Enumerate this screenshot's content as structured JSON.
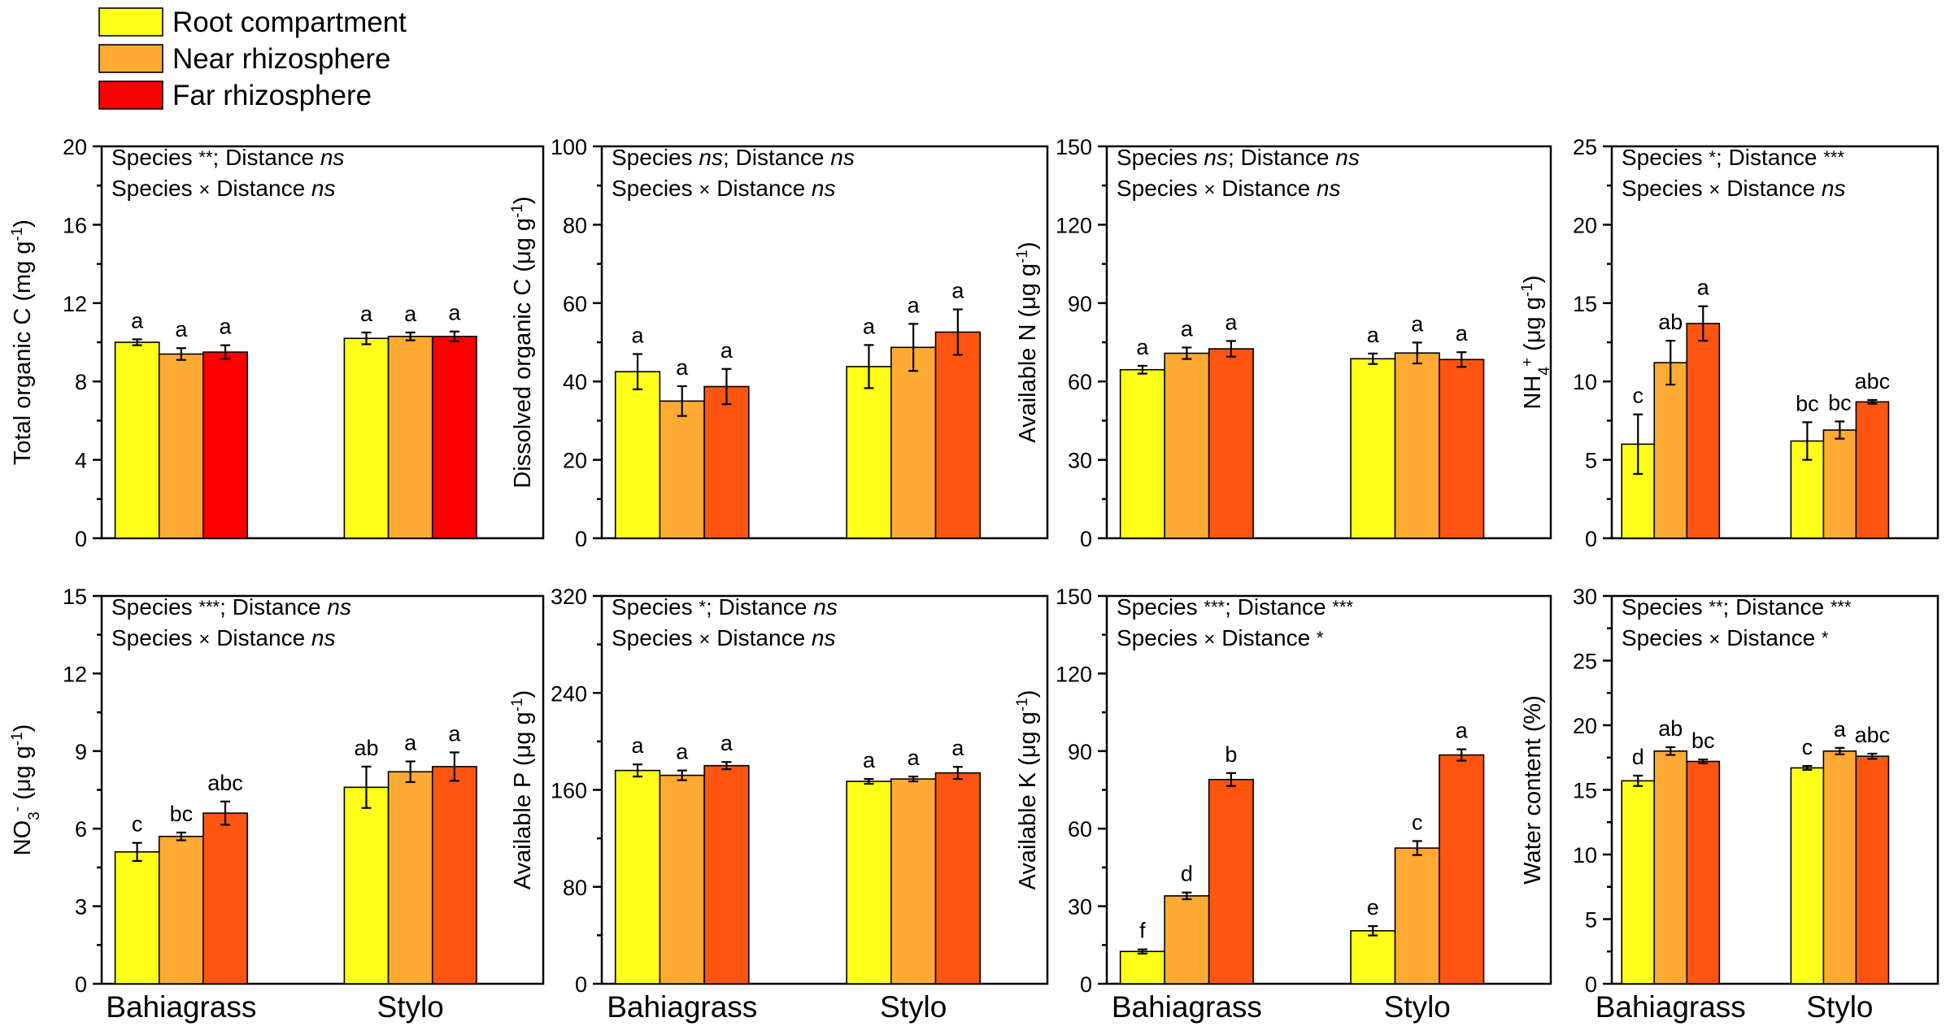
{
  "colors": {
    "root": "#FFFF1A",
    "near": "#FFAA33",
    "far_red": "#FF0000",
    "far_orange": "#FF5511"
  },
  "legend": [
    {
      "label": "Root compartment",
      "color": "#FFFF1A"
    },
    {
      "label": "Near rhizosphere",
      "color": "#FFAA33"
    },
    {
      "label": "Far rhizosphere",
      "color": "#FF0000"
    }
  ],
  "chart_data": [
    {
      "type": "bar",
      "panel": "total-organic-c",
      "ylabel_main": "Total organic C (mg g",
      "ylabel_sup": "-1",
      "ylabel_tail": ")",
      "ylim": [
        0,
        20
      ],
      "yticks": [
        0,
        4,
        8,
        12,
        16,
        20
      ],
      "categories": [
        "Bahiagrass",
        "Stylo"
      ],
      "far_color": "far_red",
      "series": [
        {
          "name": "Root compartment",
          "values": [
            10.0,
            10.2
          ],
          "errors": [
            0.15,
            0.3
          ],
          "letters": [
            "a",
            "a"
          ]
        },
        {
          "name": "Near rhizosphere",
          "values": [
            9.4,
            10.3
          ],
          "errors": [
            0.3,
            0.2
          ],
          "letters": [
            "a",
            "a"
          ]
        },
        {
          "name": "Far rhizosphere",
          "values": [
            9.5,
            10.3
          ],
          "errors": [
            0.35,
            0.25
          ],
          "letters": [
            "a",
            "a"
          ]
        }
      ],
      "annotation_1": [
        {
          "t": "Species "
        },
        {
          "t": "**",
          "k": "star"
        },
        {
          "t": "; Distance "
        },
        {
          "t": "ns",
          "k": "italic"
        }
      ],
      "annotation_2": [
        {
          "t": "Species "
        },
        {
          "t": "×",
          "k": "times"
        },
        {
          "t": " Distance "
        },
        {
          "t": "ns",
          "k": "italic"
        }
      ]
    },
    {
      "type": "bar",
      "panel": "dissolved-organic-c",
      "ylabel_main": "Dissolved organic C (μg g",
      "ylabel_sup": "-1",
      "ylabel_tail": ")",
      "ylim": [
        0,
        100
      ],
      "yticks": [
        0,
        20,
        40,
        60,
        80,
        100
      ],
      "categories": [
        "Bahiagrass",
        "Stylo"
      ],
      "far_color": "far_orange",
      "series": [
        {
          "name": "Root compartment",
          "values": [
            42.5,
            43.8
          ],
          "errors": [
            4.5,
            5.5
          ],
          "letters": [
            "a",
            "a"
          ]
        },
        {
          "name": "Near rhizosphere",
          "values": [
            35.0,
            48.7
          ],
          "errors": [
            3.8,
            6.0
          ],
          "letters": [
            "a",
            "a"
          ]
        },
        {
          "name": "Far rhizosphere",
          "values": [
            38.7,
            52.6
          ],
          "errors": [
            4.5,
            5.8
          ],
          "letters": [
            "a",
            "a"
          ]
        }
      ],
      "annotation_1": [
        {
          "t": "Species "
        },
        {
          "t": "ns",
          "k": "italic"
        },
        {
          "t": "; Distance "
        },
        {
          "t": "ns",
          "k": "italic"
        }
      ],
      "annotation_2": [
        {
          "t": "Species "
        },
        {
          "t": "×",
          "k": "times"
        },
        {
          "t": " Distance "
        },
        {
          "t": "ns",
          "k": "italic"
        }
      ]
    },
    {
      "type": "bar",
      "panel": "available-n",
      "ylabel_main": "Available N (μg g",
      "ylabel_sup": "-1",
      "ylabel_tail": ")",
      "ylim": [
        0,
        150
      ],
      "yticks": [
        0,
        30,
        60,
        90,
        120,
        150
      ],
      "categories": [
        "Bahiagrass",
        "Stylo"
      ],
      "far_color": "far_orange",
      "series": [
        {
          "name": "Root compartment",
          "values": [
            64.5,
            68.7
          ],
          "errors": [
            1.5,
            2.0
          ],
          "letters": [
            "a",
            "a"
          ]
        },
        {
          "name": "Near rhizosphere",
          "values": [
            70.8,
            70.9
          ],
          "errors": [
            2.2,
            4.0
          ],
          "letters": [
            "a",
            "a"
          ]
        },
        {
          "name": "Far rhizosphere",
          "values": [
            72.5,
            68.4
          ],
          "errors": [
            3.0,
            2.8
          ],
          "letters": [
            "a",
            "a"
          ]
        }
      ],
      "annotation_1": [
        {
          "t": "Species "
        },
        {
          "t": "ns",
          "k": "italic"
        },
        {
          "t": "; Distance "
        },
        {
          "t": "ns",
          "k": "italic"
        }
      ],
      "annotation_2": [
        {
          "t": "Species "
        },
        {
          "t": "×",
          "k": "times"
        },
        {
          "t": " Distance "
        },
        {
          "t": "ns",
          "k": "italic"
        }
      ]
    },
    {
      "type": "bar",
      "panel": "nh4",
      "ylabel_main": "NH",
      "ylabel_sub": "4",
      "ylabel_sup_ion": "+",
      "ylabel_unit": " (μg g",
      "ylabel_sup": "-1",
      "ylabel_tail": ")",
      "ylim": [
        0,
        25
      ],
      "yticks": [
        0,
        5,
        10,
        15,
        20,
        25
      ],
      "categories": [
        "Bahiagrass",
        "Stylo"
      ],
      "far_color": "far_orange",
      "series": [
        {
          "name": "Root compartment",
          "values": [
            6.0,
            6.2
          ],
          "errors": [
            1.9,
            1.2
          ],
          "letters": [
            "c",
            "bc"
          ]
        },
        {
          "name": "Near rhizosphere",
          "values": [
            11.2,
            6.9
          ],
          "errors": [
            1.4,
            0.55
          ],
          "letters": [
            "ab",
            "bc"
          ]
        },
        {
          "name": "Far rhizosphere",
          "values": [
            13.7,
            8.7
          ],
          "errors": [
            1.1,
            0.12
          ],
          "letters": [
            "a",
            "abc"
          ]
        }
      ],
      "annotation_1": [
        {
          "t": "Species "
        },
        {
          "t": "*",
          "k": "star"
        },
        {
          "t": "; Distance "
        },
        {
          "t": "***",
          "k": "star"
        }
      ],
      "annotation_2": [
        {
          "t": "Species "
        },
        {
          "t": "×",
          "k": "times"
        },
        {
          "t": " Distance "
        },
        {
          "t": "ns",
          "k": "italic"
        }
      ]
    },
    {
      "type": "bar",
      "panel": "no3",
      "ylabel_main": "NO",
      "ylabel_sub": "3",
      "ylabel_sup_ion": "-",
      "ylabel_unit": " (μg g",
      "ylabel_sup": "-1",
      "ylabel_tail": ")",
      "ylim": [
        0,
        15
      ],
      "yticks": [
        0,
        3,
        6,
        9,
        12,
        15
      ],
      "categories": [
        "Bahiagrass",
        "Stylo"
      ],
      "far_color": "far_orange",
      "series": [
        {
          "name": "Root compartment",
          "values": [
            5.1,
            7.6
          ],
          "errors": [
            0.35,
            0.8
          ],
          "letters": [
            "c",
            "ab"
          ]
        },
        {
          "name": "Near rhizosphere",
          "values": [
            5.7,
            8.2
          ],
          "errors": [
            0.15,
            0.4
          ],
          "letters": [
            "bc",
            "a"
          ]
        },
        {
          "name": "Far rhizosphere",
          "values": [
            6.6,
            8.4
          ],
          "errors": [
            0.45,
            0.55
          ],
          "letters": [
            "abc",
            "a"
          ]
        }
      ],
      "annotation_1": [
        {
          "t": "Species "
        },
        {
          "t": "***",
          "k": "star"
        },
        {
          "t": "; Distance "
        },
        {
          "t": "ns",
          "k": "italic"
        }
      ],
      "annotation_2": [
        {
          "t": "Species "
        },
        {
          "t": "×",
          "k": "times"
        },
        {
          "t": " Distance "
        },
        {
          "t": "ns",
          "k": "italic"
        }
      ]
    },
    {
      "type": "bar",
      "panel": "available-p",
      "ylabel_main": "Available P (μg g",
      "ylabel_sup": "-1",
      "ylabel_tail": ")",
      "ylim": [
        0,
        320
      ],
      "yticks": [
        0,
        80,
        160,
        240,
        320
      ],
      "categories": [
        "Bahiagrass",
        "Stylo"
      ],
      "far_color": "far_orange",
      "series": [
        {
          "name": "Root compartment",
          "values": [
            176,
            167
          ],
          "errors": [
            5,
            2
          ],
          "letters": [
            "a",
            "a"
          ]
        },
        {
          "name": "Near rhizosphere",
          "values": [
            172,
            169
          ],
          "errors": [
            4,
            2
          ],
          "letters": [
            "a",
            "a"
          ]
        },
        {
          "name": "Far rhizosphere",
          "values": [
            180,
            174
          ],
          "errors": [
            3,
            5
          ],
          "letters": [
            "a",
            "a"
          ]
        }
      ],
      "annotation_1": [
        {
          "t": "Species "
        },
        {
          "t": "*",
          "k": "star"
        },
        {
          "t": "; Distance "
        },
        {
          "t": "ns",
          "k": "italic"
        }
      ],
      "annotation_2": [
        {
          "t": "Species "
        },
        {
          "t": "×",
          "k": "times"
        },
        {
          "t": " Distance "
        },
        {
          "t": "ns",
          "k": "italic"
        }
      ]
    },
    {
      "type": "bar",
      "panel": "available-k",
      "ylabel_main": "Available K (μg g",
      "ylabel_sup": "-1",
      "ylabel_tail": ")",
      "ylim": [
        0,
        150
      ],
      "yticks": [
        0,
        30,
        60,
        90,
        120,
        150
      ],
      "categories": [
        "Bahiagrass",
        "Stylo"
      ],
      "far_color": "far_orange",
      "series": [
        {
          "name": "Root compartment",
          "values": [
            12.5,
            20.5
          ],
          "errors": [
            0.8,
            1.8
          ],
          "letters": [
            "f",
            "e"
          ]
        },
        {
          "name": "Near rhizosphere",
          "values": [
            34.0,
            52.5
          ],
          "errors": [
            1.3,
            2.7
          ],
          "letters": [
            "d",
            "c"
          ]
        },
        {
          "name": "Far rhizosphere",
          "values": [
            79.0,
            88.5
          ],
          "errors": [
            2.5,
            2.2
          ],
          "letters": [
            "b",
            "a"
          ]
        }
      ],
      "annotation_1": [
        {
          "t": "Species "
        },
        {
          "t": "***",
          "k": "star"
        },
        {
          "t": "; Distance "
        },
        {
          "t": "***",
          "k": "star"
        }
      ],
      "annotation_2": [
        {
          "t": "Species "
        },
        {
          "t": "×",
          "k": "times"
        },
        {
          "t": " Distance "
        },
        {
          "t": "*",
          "k": "star"
        }
      ]
    },
    {
      "type": "bar",
      "panel": "water-content",
      "ylabel_main": "Water content (%)",
      "ylim": [
        0,
        30
      ],
      "yticks": [
        0,
        5,
        10,
        15,
        20,
        25,
        30
      ],
      "categories": [
        "Bahiagrass",
        "Stylo"
      ],
      "far_color": "far_orange",
      "series": [
        {
          "name": "Root compartment",
          "values": [
            15.7,
            16.7
          ],
          "errors": [
            0.4,
            0.15
          ],
          "letters": [
            "d",
            "c"
          ]
        },
        {
          "name": "Near rhizosphere",
          "values": [
            18.0,
            18.0
          ],
          "errors": [
            0.3,
            0.25
          ],
          "letters": [
            "ab",
            "a"
          ]
        },
        {
          "name": "Far rhizosphere",
          "values": [
            17.2,
            17.6
          ],
          "errors": [
            0.15,
            0.2
          ],
          "letters": [
            "bc",
            "abc"
          ]
        }
      ],
      "annotation_1": [
        {
          "t": "Species "
        },
        {
          "t": "**",
          "k": "star"
        },
        {
          "t": "; Distance "
        },
        {
          "t": "***",
          "k": "star"
        }
      ],
      "annotation_2": [
        {
          "t": "Species "
        },
        {
          "t": "×",
          "k": "times"
        },
        {
          "t": " Distance "
        },
        {
          "t": "*",
          "k": "star"
        }
      ]
    }
  ]
}
